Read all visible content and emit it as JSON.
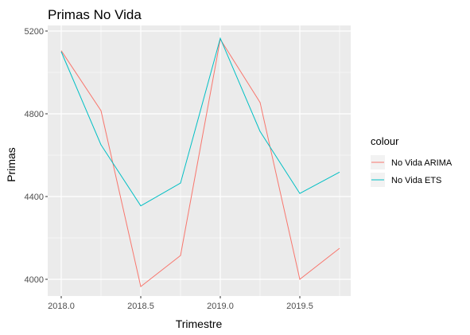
{
  "chart_data": {
    "type": "line",
    "title": "Primas No Vida",
    "xlabel": "Trimestre",
    "ylabel": "Primas",
    "x": [
      2018.0,
      2018.25,
      2018.5,
      2018.75,
      2019.0,
      2019.25,
      2019.5,
      2019.75
    ],
    "x_ticks": [
      2018.0,
      2018.5,
      2019.0,
      2019.5
    ],
    "x_tick_labels": [
      "2018.0",
      "2018.5",
      "2019.0",
      "2019.5"
    ],
    "y_ticks": [
      4000,
      4400,
      4800,
      5200
    ],
    "y_tick_labels": [
      "4000",
      "4400",
      "4800",
      "5200"
    ],
    "xlim": [
      1967.0,
      2019.837
    ],
    "ylim": [
      3912,
      5228
    ],
    "grid": true,
    "legend": {
      "title": "colour",
      "position": "right"
    },
    "series": [
      {
        "name": "No Vida ARIMA",
        "color": "#F8766D",
        "values": [
          5105,
          4815,
          3965,
          4115,
          5160,
          4855,
          4000,
          4150
        ]
      },
      {
        "name": "No Vida ETS",
        "color": "#00BFC4",
        "values": [
          5100,
          4650,
          4355,
          4465,
          5165,
          4715,
          4415,
          4518
        ]
      }
    ]
  },
  "colors": {
    "panel_background": "#EBEBEB",
    "grid": "#FFFFFF",
    "tick": "#333333"
  }
}
